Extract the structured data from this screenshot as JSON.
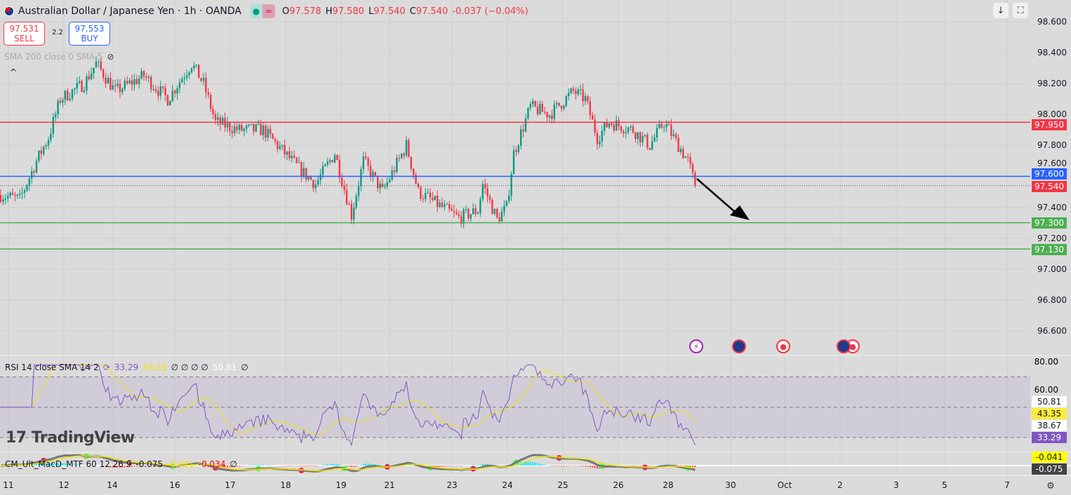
{
  "header": {
    "symbol": "Australian Dollar / Japanese Yen · 1h · OANDA",
    "open_label": "O",
    "open": "97.578",
    "high_label": "H",
    "high": "97.580",
    "low_label": "L",
    "low": "97.540",
    "close_label": "C",
    "close": "97.540",
    "change": "-0.037 (−0.04%)",
    "status_icon": "≈"
  },
  "trade": {
    "sell_price": "97.531",
    "sell_label": "SELL",
    "spread": "2.2",
    "buy_price": "97.553",
    "buy_label": "BUY"
  },
  "sma": {
    "label": "SMA 200 close 0 SMA 5"
  },
  "price_axis": {
    "labels": [
      "98.600",
      "98.400",
      "98.200",
      "98.000",
      "97.800",
      "97.600",
      "97.400",
      "97.200",
      "97.000",
      "96.800",
      "96.600"
    ]
  },
  "levels": [
    {
      "price": 97.95,
      "label": "97.950",
      "color": "#f23645"
    },
    {
      "price": 97.6,
      "label": "97.600",
      "color": "#2962ff"
    },
    {
      "price": 97.3,
      "label": "97.300",
      "color": "#4caf50"
    },
    {
      "price": 97.13,
      "label": "97.130",
      "color": "#4caf50"
    }
  ],
  "last_price": {
    "price": 97.54,
    "label": "97.540",
    "color": "#f23645"
  },
  "time_axis": [
    {
      "label": "11"
    },
    {
      "label": "12"
    },
    {
      "label": "14"
    },
    {
      "label": "16"
    },
    {
      "label": "17"
    },
    {
      "label": "18"
    },
    {
      "label": "19"
    },
    {
      "label": "21"
    },
    {
      "label": "23"
    },
    {
      "label": "24"
    },
    {
      "label": "25"
    },
    {
      "label": "26"
    },
    {
      "label": "28"
    },
    {
      "label": "30"
    },
    {
      "label": "Oct"
    },
    {
      "label": "2"
    },
    {
      "label": "3"
    },
    {
      "label": "5"
    },
    {
      "label": "7"
    }
  ],
  "rsi": {
    "label": "RSI 14 close SMA 14 2",
    "rsi_value": "33.29",
    "sma_value": "43.35",
    "na": "∅ ∅ ∅ ∅",
    "upper_band": "50.81",
    "na2": "∅",
    "axis": [
      "80.00",
      "60.00"
    ],
    "tags": [
      {
        "label": "50.81",
        "bg": "#ffffff",
        "fg": "#131722"
      },
      {
        "label": "43.35",
        "bg": "#ffeb3b",
        "fg": "#131722"
      },
      {
        "label": "38.67",
        "bg": "#ffffff",
        "fg": "#131722"
      },
      {
        "label": "33.29",
        "bg": "#7e57c2",
        "fg": "#ffffff"
      }
    ]
  },
  "macd": {
    "label": "CM_Ult_MacD_MTF 60 12 26 9",
    "v1": "-0.075",
    "v2": "-0.041",
    "v3": "-0.034",
    "na": "∅",
    "tags": [
      {
        "label": "-0.041",
        "bg": "#ffff00",
        "fg": "#131722"
      },
      {
        "label": "-0.075",
        "bg": "#434343",
        "fg": "#ffffff"
      }
    ]
  },
  "watermark": "TradingView",
  "chart_data": {
    "type": "candlestick",
    "price_waypoints": [
      [
        0,
        97.48
      ],
      [
        8,
        97.45
      ],
      [
        15,
        97.7
      ],
      [
        20,
        97.85
      ],
      [
        25,
        98.1
      ],
      [
        35,
        98.2
      ],
      [
        40,
        98.33
      ],
      [
        48,
        98.15
      ],
      [
        60,
        98.25
      ],
      [
        70,
        98.1
      ],
      [
        80,
        98.33
      ],
      [
        85,
        98.2
      ],
      [
        90,
        97.95
      ],
      [
        100,
        97.9
      ],
      [
        110,
        97.9
      ],
      [
        125,
        97.65
      ],
      [
        132,
        97.55
      ],
      [
        140,
        97.75
      ],
      [
        147,
        97.35
      ],
      [
        152,
        97.7
      ],
      [
        160,
        97.5
      ],
      [
        170,
        97.8
      ],
      [
        175,
        97.5
      ],
      [
        185,
        97.4
      ],
      [
        192,
        97.33
      ],
      [
        200,
        97.38
      ],
      [
        202,
        97.55
      ],
      [
        208,
        97.32
      ],
      [
        212,
        97.4
      ],
      [
        215,
        97.75
      ],
      [
        222,
        98.05
      ],
      [
        230,
        98.0
      ],
      [
        240,
        98.15
      ],
      [
        245,
        98.1
      ],
      [
        250,
        97.85
      ],
      [
        255,
        97.95
      ],
      [
        265,
        97.9
      ],
      [
        272,
        97.8
      ],
      [
        278,
        97.95
      ],
      [
        282,
        97.85
      ],
      [
        288,
        97.7
      ],
      [
        291,
        97.54
      ]
    ],
    "ylim": [
      96.5,
      98.7
    ]
  }
}
